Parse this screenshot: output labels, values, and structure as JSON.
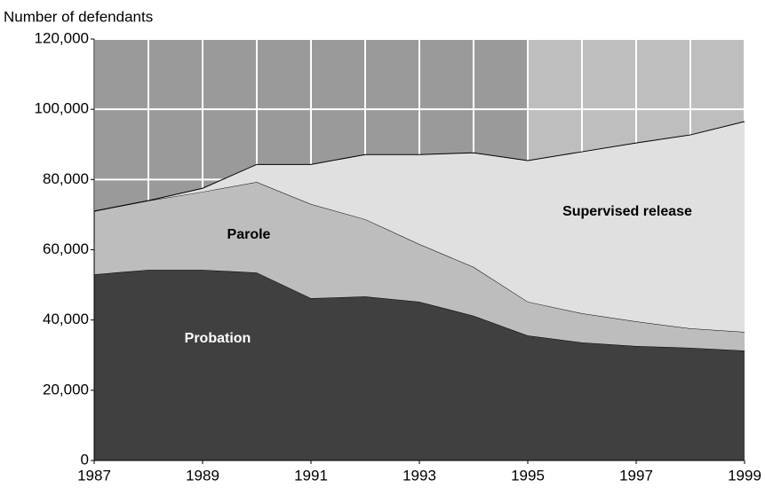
{
  "chart_data": {
    "type": "stacked_area",
    "y_axis_label": "Number of defendants",
    "x": [
      1987,
      1988,
      1989,
      1990,
      1991,
      1992,
      1993,
      1994,
      1995,
      1996,
      1997,
      1998,
      1999
    ],
    "xlim": [
      1987,
      1999
    ],
    "xticks": [
      1987,
      1989,
      1991,
      1993,
      1995,
      1997,
      1999
    ],
    "ylim": [
      0,
      120000
    ],
    "yticks": [
      0,
      {
        "value": 20000,
        "label": "20,000"
      },
      {
        "value": 40000,
        "label": "40,000"
      },
      {
        "value": 60000,
        "label": "60,000"
      },
      {
        "value": 80000,
        "label": "80,000"
      },
      {
        "value": 100000,
        "label": "100,000"
      },
      {
        "value": 120000,
        "label": "120,000"
      }
    ],
    "grid": true,
    "series": [
      {
        "name": "Probation",
        "color": "#404040",
        "label_color": "#ffffff",
        "values": [
          53000,
          54300,
          54300,
          53500,
          46200,
          46700,
          45200,
          41200,
          35600,
          33600,
          32600,
          32100,
          31300
        ]
      },
      {
        "name": "Parole",
        "color": "#bdbdbd",
        "label_color": "#000000",
        "values": [
          18000,
          19700,
          22200,
          25800,
          26800,
          22000,
          16400,
          13900,
          9600,
          8300,
          7000,
          5500,
          5300
        ]
      },
      {
        "name": "Supervised release",
        "color": "#e0e0e0",
        "label_color": "#000000",
        "values": [
          0,
          0,
          1000,
          5000,
          11300,
          18400,
          25500,
          32500,
          40200,
          46000,
          50800,
          55100,
          59900
        ]
      }
    ]
  }
}
